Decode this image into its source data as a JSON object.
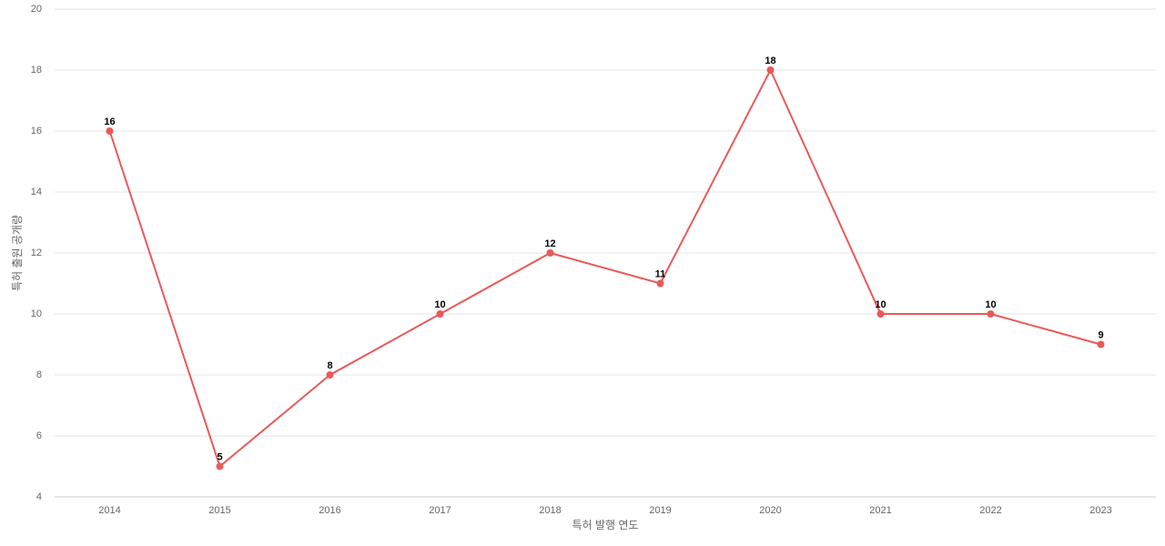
{
  "chart_data": {
    "type": "line",
    "x_label": "특허 발행 연도",
    "y_label": "특허 출원 공개량",
    "categories": [
      "2014",
      "2015",
      "2016",
      "2017",
      "2018",
      "2019",
      "2020",
      "2021",
      "2022",
      "2023"
    ],
    "series": [
      {
        "name": "특허 출원 공개량",
        "color": "#e85a58",
        "values": [
          16,
          5,
          8,
          10,
          12,
          11,
          18,
          10,
          10,
          9
        ]
      }
    ],
    "ylim": [
      4,
      20
    ],
    "yticks": [
      4,
      6,
      8,
      10,
      12,
      14,
      16,
      18,
      20
    ],
    "grid": true,
    "legend": false
  }
}
